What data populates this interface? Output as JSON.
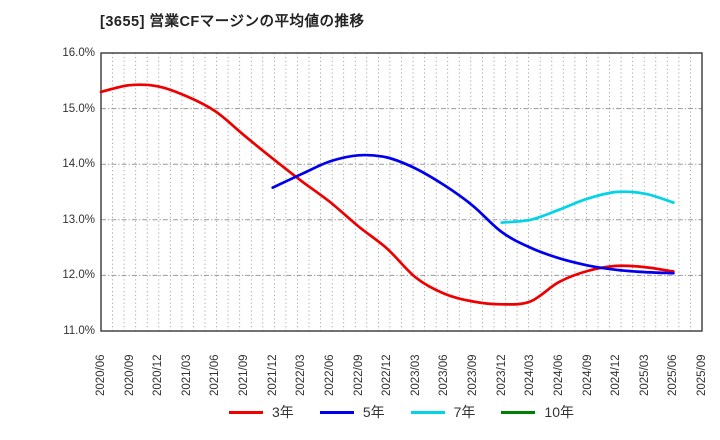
{
  "title": "[3655]  営業CFマージンの平均値の推移",
  "y_axis": {
    "tick_labels": [
      "16.0%",
      "15.0%",
      "14.0%",
      "13.0%",
      "12.0%",
      "11.0%"
    ],
    "tick_values": [
      16.0,
      15.0,
      14.0,
      13.0,
      12.0,
      11.0
    ]
  },
  "chart_data": {
    "type": "line",
    "title": "[3655]  営業CFマージンの平均値の推移",
    "ylim": [
      11.0,
      16.0
    ],
    "grid": true,
    "legend_position": "bottom",
    "categories": [
      "2020/06",
      "2020/09",
      "2020/12",
      "2021/03",
      "2021/06",
      "2021/09",
      "2021/12",
      "2022/03",
      "2022/06",
      "2022/09",
      "2022/12",
      "2023/03",
      "2023/06",
      "2023/09",
      "2023/12",
      "2024/03",
      "2024/06",
      "2024/09",
      "2024/12",
      "2025/03",
      "2025/06",
      "2025/09"
    ],
    "series": [
      {
        "name": "3年",
        "color": "#ee0000",
        "values": [
          15.3,
          15.42,
          15.4,
          15.22,
          14.95,
          14.52,
          14.1,
          13.7,
          13.32,
          12.88,
          12.48,
          11.96,
          11.67,
          11.53,
          11.48,
          11.53,
          11.88,
          12.08,
          12.17,
          12.15,
          12.07,
          null
        ]
      },
      {
        "name": "5年",
        "color": "#0000ee",
        "values": [
          null,
          null,
          null,
          null,
          null,
          null,
          13.58,
          13.82,
          14.05,
          14.16,
          14.12,
          13.92,
          13.62,
          13.25,
          12.78,
          12.5,
          12.31,
          12.18,
          12.1,
          12.06,
          12.04,
          null
        ]
      },
      {
        "name": "7年",
        "color": "#00d4e6",
        "values": [
          null,
          null,
          null,
          null,
          null,
          null,
          null,
          null,
          null,
          null,
          null,
          null,
          null,
          null,
          12.95,
          13.0,
          13.18,
          13.38,
          13.5,
          13.47,
          13.31,
          null
        ]
      },
      {
        "name": "10年",
        "color": "#008000",
        "values": [
          null,
          null,
          null,
          null,
          null,
          null,
          null,
          null,
          null,
          null,
          null,
          null,
          null,
          null,
          null,
          null,
          null,
          null,
          null,
          null,
          null,
          null
        ]
      }
    ]
  }
}
